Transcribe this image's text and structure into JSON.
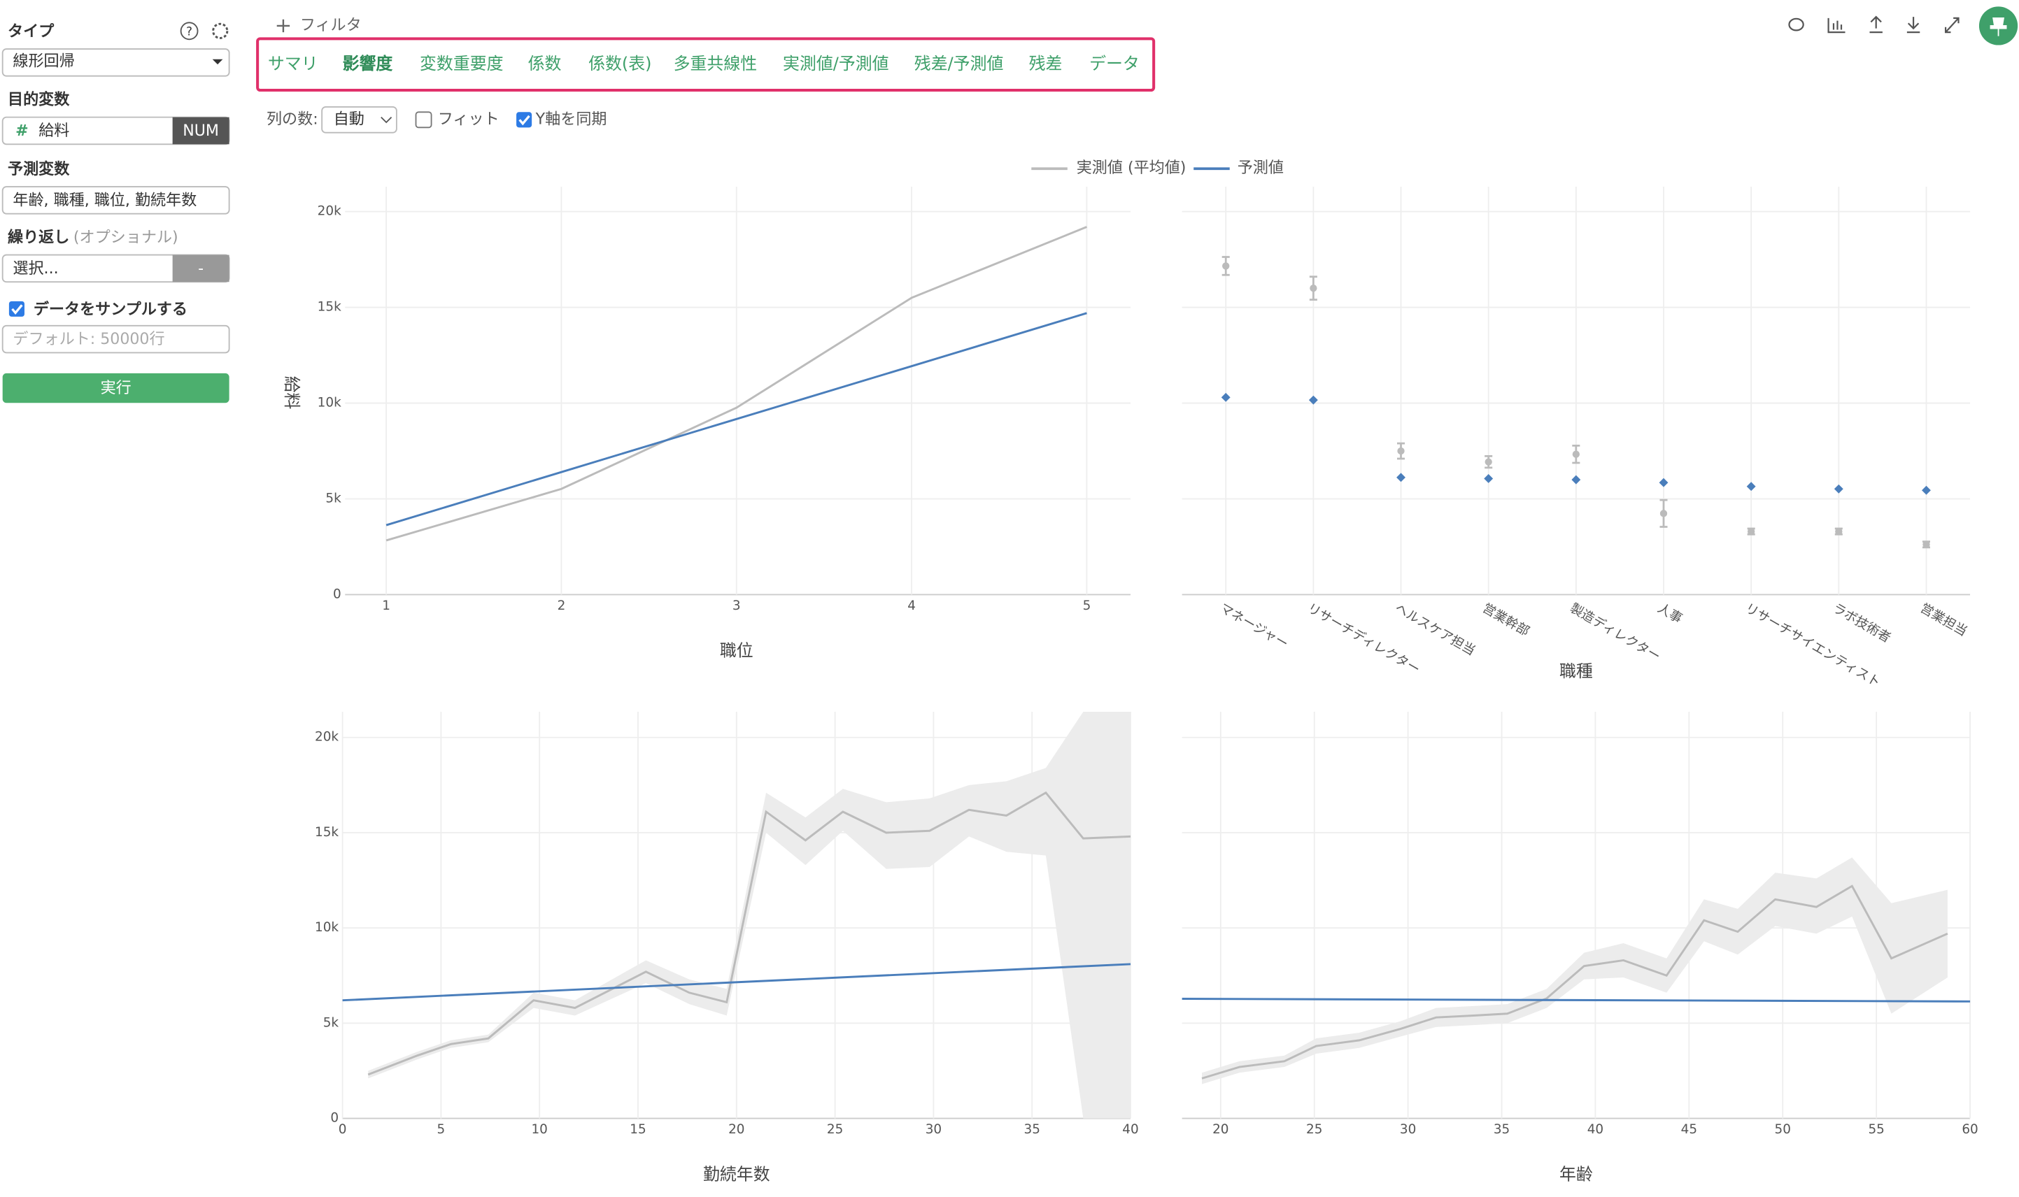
{
  "sidebar": {
    "type_label": "タイプ",
    "type_value": "線形回帰",
    "target_label": "目的変数",
    "target_icon": "#",
    "target_value": "給料",
    "target_kind": "NUM",
    "predictors_label": "予測変数",
    "predictors_value": "年齢, 職種, 職位, 勤続年数",
    "repeat_label": "繰り返し",
    "repeat_optional": "(オプショナル)",
    "repeat_value": "選択...",
    "repeat_button": "-",
    "sample_label": "データをサンプルする",
    "sample_placeholder": "デフォルト: 50000行",
    "run_button": "実行"
  },
  "toolbar": {
    "filter": "フィルタ"
  },
  "tabs": [
    "サマリ",
    "影響度",
    "変数重要度",
    "係数",
    "係数(表)",
    "多重共線性",
    "実測値/予測値",
    "残差/予測値",
    "残差",
    "データ"
  ],
  "options": {
    "columns_label": "列の数:",
    "columns_value": "自動",
    "fit_label": "フィット",
    "sync_label": "Y軸を同期"
  },
  "chart_data": [
    {
      "type": "line",
      "xlabel": "職位",
      "ylabel": "給料",
      "xlim": [
        0.765,
        5.25
      ],
      "xticks": [
        1,
        2,
        3,
        4,
        5
      ],
      "ylim": [
        0,
        21300
      ],
      "yticks": [
        0,
        {
          "value": 5000,
          "label": "5k"
        },
        {
          "value": 10000,
          "label": "10k"
        },
        {
          "value": 15000,
          "label": "15k"
        },
        {
          "value": 20000,
          "label": "20k"
        }
      ],
      "grid": true,
      "show_ytick_labels": true,
      "series": [
        {
          "name": "実測値 (平均値)",
          "color": "#bbbbbb",
          "x": [
            1,
            2,
            3,
            4,
            5
          ],
          "values": [
            2830,
            5520,
            9760,
            15500,
            19200
          ]
        },
        {
          "name": "予測値",
          "color": "#4a7ebb",
          "x": [
            1,
            2,
            3,
            4,
            5
          ],
          "values": [
            3630,
            6400,
            9170,
            11930,
            14700
          ]
        }
      ]
    },
    {
      "type": "dot",
      "xlabel": "職種",
      "categories": [
        "マネージャー",
        "リサーチディレクター",
        "ヘルスケア担当",
        "営業幹部",
        "製造ディレクター",
        "人事",
        "リサーチサイエンティスト",
        "ラボ技術者",
        "営業担当"
      ],
      "ylim": [
        0,
        21300
      ],
      "yticks": [
        0,
        5000,
        10000,
        15000,
        20000
      ],
      "grid": true,
      "show_ytick_labels": false,
      "series": [
        {
          "color": "#bbbbbb",
          "values": [
            17160,
            16000,
            7500,
            6930,
            7330,
            4240,
            3300,
            3300,
            2620
          ],
          "errors": [
            470,
            600,
            400,
            300,
            450,
            700,
            150,
            150,
            150
          ]
        },
        {
          "color": "#4a7ebb",
          "values": [
            10300,
            10160,
            6120,
            6060,
            6000,
            5850,
            5650,
            5520,
            5450
          ]
        }
      ]
    },
    {
      "type": "line",
      "xlabel": "勤続年数",
      "xlim": [
        0,
        40
      ],
      "xticks": [
        0,
        5,
        10,
        15,
        20,
        25,
        30,
        35,
        40
      ],
      "ylim": [
        0,
        21350
      ],
      "yticks": [
        0,
        {
          "value": 5000,
          "label": "5k"
        },
        {
          "value": 10000,
          "label": "10k"
        },
        {
          "value": 15000,
          "label": "15k"
        },
        {
          "value": 20000,
          "label": "20k"
        }
      ],
      "grid": true,
      "show_ytick_labels": true,
      "series": [
        {
          "color": "#bbbbbb",
          "band_color": "#ececec",
          "x": [
            1.3,
            3.8,
            5.5,
            7.4,
            9.7,
            11.8,
            15.4,
            17.6,
            19.5,
            21.5,
            23.5,
            25.4,
            27.6,
            29.8,
            31.8,
            33.7,
            35.7,
            37.6,
            40
          ],
          "values": [
            2300,
            3300,
            3900,
            4200,
            6200,
            5800,
            7700,
            6600,
            6100,
            16100,
            14600,
            16100,
            15000,
            15100,
            16200,
            15900,
            17100,
            14700,
            14800
          ],
          "lower": [
            2100,
            3100,
            3700,
            4000,
            5800,
            5400,
            7100,
            6000,
            5400,
            15000,
            13300,
            15100,
            13100,
            13200,
            14800,
            14000,
            13800,
            0,
            0
          ],
          "upper": [
            2500,
            3500,
            4100,
            4400,
            6600,
            6200,
            8300,
            7300,
            6800,
            17100,
            15800,
            17300,
            16600,
            16800,
            17500,
            17700,
            18400,
            21350,
            21350
          ]
        },
        {
          "color": "#4a7ebb",
          "x": [
            0,
            40
          ],
          "values": [
            6200,
            8100
          ]
        }
      ]
    },
    {
      "type": "line",
      "xlabel": "年齢",
      "xlim": [
        17.94,
        60
      ],
      "xticks": [
        20,
        25,
        30,
        35,
        40,
        45,
        50,
        55,
        60
      ],
      "ylim": [
        0,
        21350
      ],
      "yticks": [
        0,
        5000,
        10000,
        15000,
        20000
      ],
      "grid": true,
      "show_ytick_labels": false,
      "series": [
        {
          "color": "#bbbbbb",
          "band_color": "#ececec",
          "x": [
            19,
            21,
            23.4,
            25.1,
            27.4,
            29.6,
            31.5,
            33.5,
            35.3,
            37.4,
            39.4,
            41.5,
            43.8,
            45.8,
            47.6,
            49.6,
            51.8,
            53.7,
            55.8,
            58.8
          ],
          "values": [
            2100,
            2700,
            3000,
            3800,
            4100,
            4700,
            5300,
            5400,
            5500,
            6300,
            8000,
            8300,
            7500,
            10400,
            9800,
            11500,
            11100,
            12200,
            8400,
            9700
          ],
          "lower": [
            1800,
            2400,
            2700,
            3400,
            3700,
            4300,
            4800,
            4900,
            5000,
            5800,
            7300,
            7400,
            6600,
            9300,
            8600,
            10100,
            9700,
            10600,
            5500,
            7400
          ],
          "upper": [
            2400,
            3000,
            3300,
            4200,
            4500,
            5100,
            5800,
            5900,
            6000,
            6800,
            8700,
            9200,
            8400,
            11500,
            11000,
            12900,
            12600,
            13700,
            11300,
            12000
          ]
        },
        {
          "color": "#4a7ebb",
          "x": [
            17.94,
            60
          ],
          "values": [
            6280,
            6140
          ]
        }
      ]
    }
  ]
}
